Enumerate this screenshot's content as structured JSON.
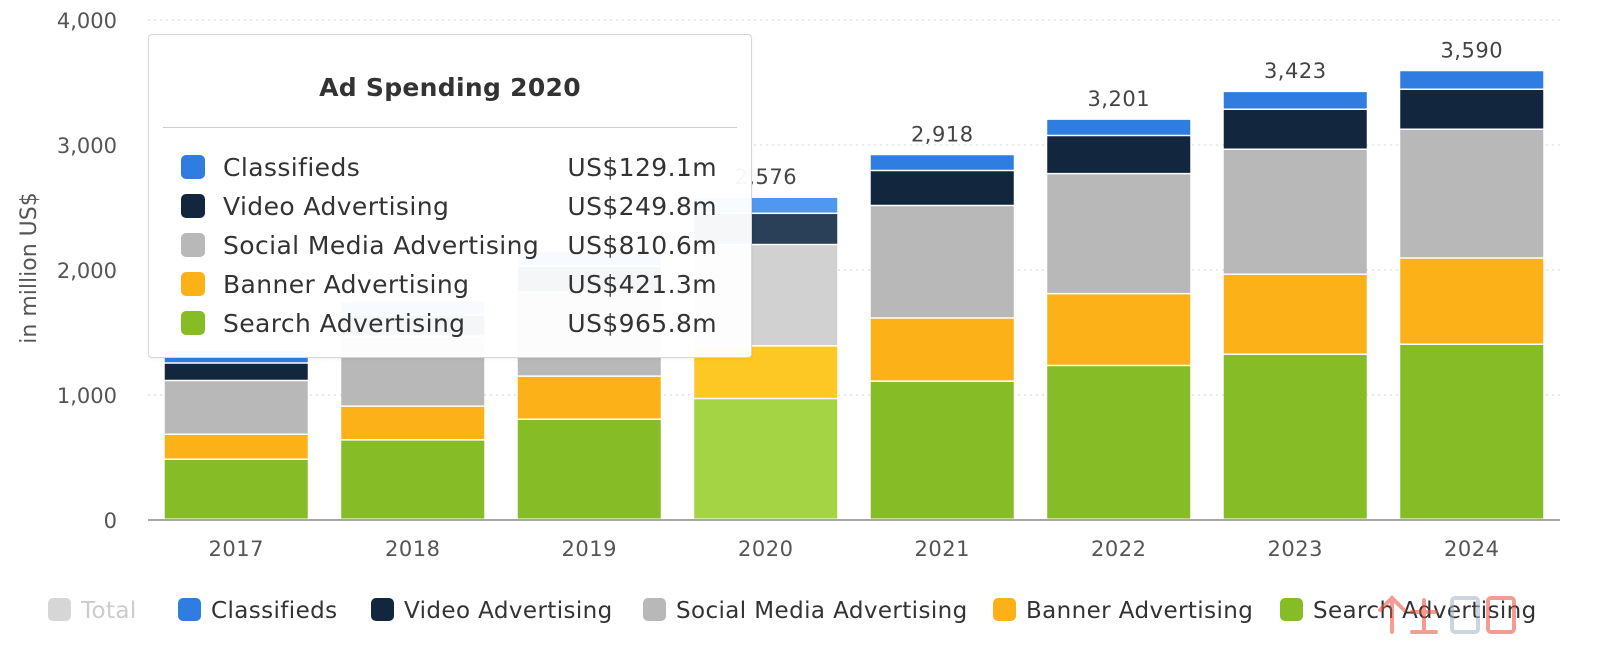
{
  "chart_data": {
    "type": "bar",
    "stacked": true,
    "categories": [
      "2017",
      "2018",
      "2019",
      "2020",
      "2021",
      "2022",
      "2023",
      "2024"
    ],
    "ylabel": "in million US$",
    "ylim": [
      0,
      4000
    ],
    "yticks": [
      0,
      1000,
      2000,
      3000,
      4000
    ],
    "ytick_labels": [
      "0",
      "1,000",
      "2,000",
      "3,000",
      "4,000"
    ],
    "grid": true,
    "legend_position": "bottom",
    "series": [
      {
        "name": "Search Advertising",
        "color": "#86bc25",
        "values": [
          480,
          635,
          800,
          965.8,
          1105,
          1230,
          1320,
          1400
        ]
      },
      {
        "name": "Banner Advertising",
        "color": "#fbb117",
        "values": [
          200,
          270,
          345,
          421.3,
          505,
          575,
          640,
          690
        ]
      },
      {
        "name": "Social Media Advertising",
        "color": "#b8b8b8",
        "values": [
          430,
          560,
          670,
          810.6,
          900,
          960,
          1000,
          1030
        ]
      },
      {
        "name": "Video Advertising",
        "color": "#12263e",
        "values": [
          140,
          170,
          210,
          249.8,
          280,
          305,
          320,
          320
        ]
      },
      {
        "name": "Classifieds",
        "color": "#2f7de1",
        "values": [
          100,
          110,
          120,
          129.1,
          128,
          131,
          143,
          150
        ]
      }
    ],
    "totals": [
      1350,
      1745,
      2145,
      2576,
      2918,
      3201,
      3423,
      3590
    ],
    "total_labels": [
      "",
      "",
      "",
      "2,576",
      "2,918",
      "3,201",
      "3,423",
      "3,590"
    ],
    "highlighted_category": "2020"
  },
  "legend": {
    "items": [
      {
        "label": "Total",
        "color": "#d6d6d6",
        "disabled": true
      },
      {
        "label": "Classifieds",
        "color": "#2f7de1",
        "disabled": false
      },
      {
        "label": "Video Advertising",
        "color": "#12263e",
        "disabled": false
      },
      {
        "label": "Social Media Advertising",
        "color": "#b8b8b8",
        "disabled": false
      },
      {
        "label": "Banner Advertising",
        "color": "#fbb117",
        "disabled": false
      },
      {
        "label": "Search Advertising",
        "color": "#86bc25",
        "disabled": false
      }
    ]
  },
  "tooltip": {
    "title": "Ad Spending 2020",
    "rows": [
      {
        "label": "Classifieds",
        "value": "US$129.1m",
        "color": "#2f7de1"
      },
      {
        "label": "Video Advertising",
        "value": "US$249.8m",
        "color": "#12263e"
      },
      {
        "label": "Social Media Advertising",
        "value": "US$810.6m",
        "color": "#b8b8b8"
      },
      {
        "label": "Banner Advertising",
        "value": "US$421.3m",
        "color": "#fbb117"
      },
      {
        "label": "Search Advertising",
        "value": "US$965.8m",
        "color": "#86bc25"
      }
    ]
  },
  "watermark": {
    "text": "人人都是产品经理"
  }
}
